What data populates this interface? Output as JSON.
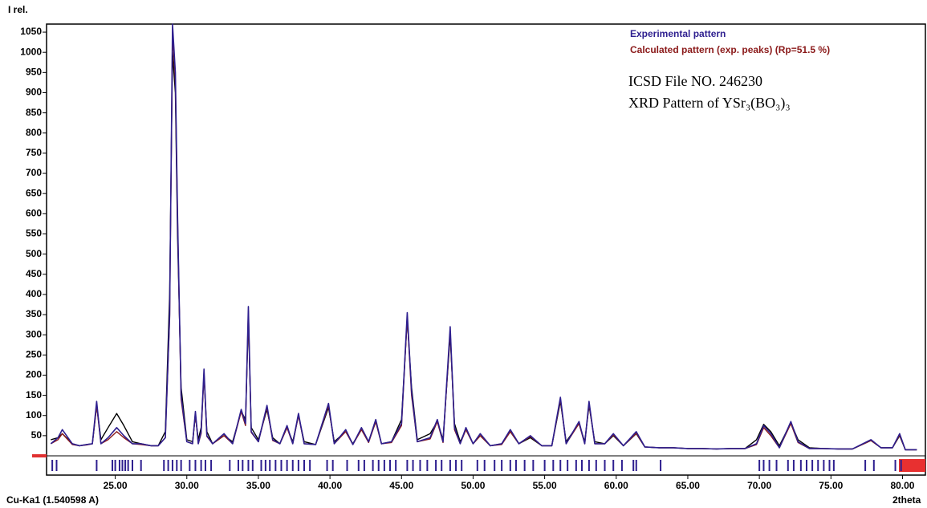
{
  "chart_data": {
    "type": "line",
    "y_label": "I rel.",
    "x_label": "2theta",
    "source_label": "Cu-Ka1 (1.540598 A)",
    "annotations": [
      "ICSD File NO. 246230",
      "XRD Pattern of YSr₃(BO₃)₃"
    ],
    "legend_position": "top-right",
    "xlim": [
      20.2,
      81.6
    ],
    "ylim": [
      0,
      1070
    ],
    "xticks": [
      {
        "value": 25,
        "label": "25.00"
      },
      {
        "value": 30,
        "label": "30.00"
      },
      {
        "value": 35,
        "label": "35.00"
      },
      {
        "value": 40,
        "label": "40.00"
      },
      {
        "value": 45,
        "label": "45.00"
      },
      {
        "value": 50,
        "label": "50.00"
      },
      {
        "value": 55,
        "label": "55.00"
      },
      {
        "value": 60,
        "label": "60.00"
      },
      {
        "value": 65,
        "label": "65.00"
      },
      {
        "value": 70,
        "label": "70.00"
      },
      {
        "value": 75,
        "label": "75.00"
      },
      {
        "value": 80,
        "label": "80.00"
      }
    ],
    "yticks": [
      50,
      100,
      150,
      200,
      250,
      300,
      350,
      400,
      450,
      500,
      550,
      600,
      650,
      700,
      750,
      800,
      850,
      900,
      950,
      1000,
      1050
    ],
    "x": [
      20.5,
      21.0,
      21.3,
      22.0,
      22.5,
      23.0,
      23.4,
      23.7,
      24.0,
      24.5,
      25.1,
      25.6,
      26.2,
      26.8,
      27.5,
      28.0,
      28.5,
      28.8,
      29.0,
      29.2,
      29.35,
      29.6,
      30.0,
      30.4,
      30.6,
      30.8,
      31.0,
      31.2,
      31.4,
      31.8,
      32.6,
      33.2,
      33.8,
      34.1,
      34.3,
      34.5,
      35.0,
      35.6,
      36.0,
      36.5,
      37.0,
      37.4,
      37.8,
      38.2,
      39.0,
      39.9,
      40.3,
      41.1,
      41.6,
      42.2,
      42.7,
      43.2,
      43.6,
      44.3,
      45.0,
      45.4,
      45.7,
      46.1,
      47.0,
      47.5,
      47.9,
      48.4,
      48.7,
      49.1,
      49.5,
      50.0,
      50.5,
      51.2,
      52.0,
      52.6,
      53.2,
      54.0,
      54.8,
      55.5,
      56.1,
      56.5,
      57.4,
      57.8,
      58.1,
      58.5,
      59.2,
      59.8,
      60.5,
      61.4,
      62.0,
      63.0,
      64.0,
      65.0,
      66.0,
      67.0,
      68.0,
      69.0,
      69.8,
      70.3,
      70.8,
      71.4,
      72.2,
      72.7,
      73.5,
      74.5,
      75.5,
      76.5,
      77.8,
      78.5,
      79.3,
      79.8,
      80.2,
      81.0
    ],
    "series": [
      {
        "color": "#000000",
        "values": [
          40,
          45,
          55,
          30,
          25,
          28,
          30,
          125,
          40,
          70,
          105,
          75,
          35,
          30,
          25,
          25,
          60,
          400,
          1000,
          900,
          550,
          170,
          40,
          35,
          100,
          40,
          70,
          200,
          60,
          30,
          50,
          35,
          110,
          90,
          340,
          70,
          40,
          115,
          45,
          30,
          70,
          35,
          100,
          35,
          28,
          120,
          35,
          60,
          30,
          65,
          35,
          85,
          30,
          35,
          90,
          340,
          170,
          40,
          55,
          85,
          40,
          300,
          80,
          35,
          65,
          30,
          50,
          25,
          30,
          60,
          30,
          45,
          25,
          25,
          135,
          35,
          80,
          35,
          125,
          35,
          30,
          50,
          25,
          55,
          22,
          20,
          20,
          18,
          18,
          17,
          18,
          18,
          40,
          78,
          60,
          25,
          82,
          40,
          20,
          18,
          17,
          17,
          38,
          20,
          20,
          50,
          15,
          15
        ]
      },
      {
        "name": "Calculated pattern (exp. peaks) (Rp=51.5 %)",
        "color": "#8b1a1a",
        "values": [
          30,
          40,
          55,
          28,
          25,
          27,
          30,
          125,
          30,
          40,
          60,
          45,
          30,
          28,
          25,
          25,
          45,
          340,
          1050,
          930,
          590,
          140,
          35,
          30,
          105,
          30,
          55,
          205,
          48,
          30,
          50,
          30,
          110,
          75,
          360,
          58,
          35,
          120,
          38,
          30,
          70,
          30,
          100,
          30,
          28,
          125,
          30,
          60,
          28,
          65,
          33,
          85,
          30,
          33,
          75,
          345,
          150,
          35,
          42,
          85,
          33,
          310,
          65,
          30,
          65,
          30,
          50,
          25,
          28,
          60,
          30,
          48,
          25,
          25,
          140,
          30,
          80,
          30,
          130,
          30,
          30,
          52,
          25,
          56,
          22,
          20,
          20,
          18,
          18,
          17,
          18,
          18,
          28,
          70,
          50,
          20,
          80,
          33,
          18,
          18,
          17,
          17,
          38,
          20,
          20,
          52,
          15,
          15
        ]
      },
      {
        "name": "Experimental pattern",
        "color": "#2e1f8f",
        "values": [
          30,
          45,
          65,
          30,
          25,
          28,
          30,
          135,
          30,
          45,
          70,
          50,
          30,
          30,
          25,
          25,
          45,
          350,
          1070,
          950,
          600,
          150,
          35,
          30,
          110,
          30,
          60,
          215,
          50,
          30,
          55,
          30,
          115,
          80,
          370,
          60,
          35,
          125,
          40,
          30,
          75,
          30,
          105,
          30,
          28,
          130,
          30,
          65,
          28,
          70,
          35,
          90,
          30,
          35,
          80,
          355,
          160,
          35,
          45,
          90,
          35,
          320,
          70,
          30,
          70,
          30,
          55,
          25,
          30,
          65,
          30,
          50,
          25,
          25,
          145,
          30,
          85,
          30,
          135,
          30,
          30,
          55,
          25,
          60,
          22,
          20,
          20,
          18,
          18,
          17,
          18,
          18,
          30,
          75,
          55,
          20,
          85,
          35,
          18,
          18,
          17,
          17,
          40,
          20,
          20,
          55,
          15,
          15
        ]
      }
    ],
    "reflections": [
      20.6,
      20.9,
      23.7,
      24.8,
      25.0,
      25.3,
      25.5,
      25.7,
      25.9,
      26.2,
      26.8,
      28.4,
      28.7,
      29.0,
      29.3,
      29.6,
      30.2,
      30.6,
      31.0,
      31.3,
      31.7,
      33.0,
      33.6,
      33.9,
      34.3,
      34.6,
      35.2,
      35.5,
      35.8,
      36.2,
      36.6,
      37.0,
      37.4,
      37.8,
      38.2,
      38.6,
      39.8,
      40.2,
      41.2,
      42.0,
      42.4,
      43.0,
      43.4,
      43.8,
      44.2,
      44.6,
      45.4,
      45.8,
      46.3,
      46.8,
      47.4,
      47.8,
      48.4,
      48.8,
      49.2,
      50.3,
      50.8,
      51.5,
      52.0,
      52.6,
      53.0,
      53.6,
      54.2,
      55.0,
      55.6,
      56.1,
      56.6,
      57.2,
      57.6,
      58.1,
      58.6,
      59.2,
      59.8,
      60.4,
      61.2,
      61.4,
      63.1,
      70.0,
      70.3,
      70.7,
      71.2,
      72.0,
      72.4,
      72.9,
      73.3,
      73.7,
      74.1,
      74.5,
      74.9,
      75.2,
      77.4,
      78.0,
      79.5,
      79.9
    ],
    "reflection_color": "#2e1f8f"
  }
}
